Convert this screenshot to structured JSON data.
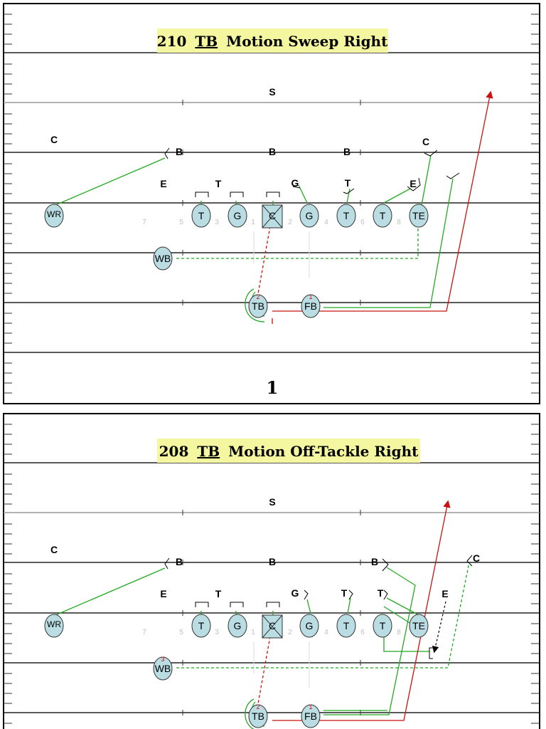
{
  "plays": [
    {
      "title_number": "210",
      "title_back": "TB",
      "title_rest": "Motion Sweep Right",
      "page_number": "1",
      "defense": {
        "safety": "S",
        "corner_left": "C",
        "corner_right": "C",
        "backer_left": "B",
        "backer_mid": "B",
        "backer_right": "B",
        "end_left": "E",
        "tackle_left": "T",
        "guard_right": "G",
        "tackle_right": "T",
        "end_right": "E"
      },
      "offense": {
        "wr": "WR",
        "lt": "T",
        "lg": "G",
        "c": "C",
        "rg": "G",
        "rt": "T",
        "te2": "T",
        "te": "TE",
        "wb": "WB",
        "tb": "TB",
        "fb": "FB"
      },
      "markers": {
        "tb_seq": "2",
        "fb_seq": "1",
        "wb_seq": ""
      }
    },
    {
      "title_number": "208",
      "title_back": "TB",
      "title_rest": "Motion Off-Tackle Right",
      "page_number": "",
      "defense": {
        "safety": "S",
        "corner_left": "C",
        "corner_right": "C",
        "backer_left": "B",
        "backer_mid": "B",
        "backer_right": "B",
        "end_left": "E",
        "tackle_left": "T",
        "guard_right": "G",
        "tackle_right": "T",
        "tackle_right2": "T",
        "end_right": "E"
      },
      "offense": {
        "wr": "WR",
        "lt": "T",
        "lg": "G",
        "c": "C",
        "rg": "G",
        "rt": "T",
        "te2": "T",
        "te": "TE",
        "wb": "WB",
        "tb": "TB",
        "fb": "FB"
      },
      "markers": {
        "tb_seq": "2",
        "fb_seq": "1",
        "wb_seq": "3"
      }
    }
  ],
  "hole_numbers": [
    "7",
    "5",
    "3",
    "1",
    "2",
    "4",
    "6",
    "8"
  ],
  "colors": {
    "player_fill": "#b9dde3",
    "block_green": "#22aa22",
    "run_red": "#cc1111",
    "title_bg": "#f5f7a0",
    "hole_gray": "#c0c0c0"
  }
}
